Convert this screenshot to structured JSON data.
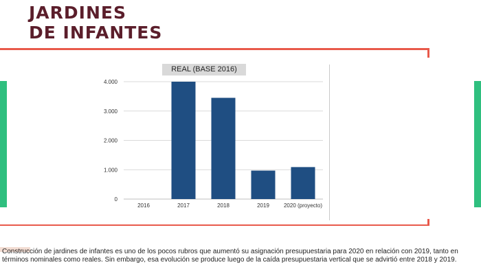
{
  "page": {
    "title_line1": "JARDINES",
    "title_line2": "DE INFANTES",
    "caption": "Construcción de jardines de infantes es uno de los pocos rubros que aumentó su asignación presupuestaria para 2020 en relación con 2019, tanto en términos nominales como reales. Sin embargo, esa evolución se produce luego de la caída presupuestaria vertical que se advirtió entre 2018 y 2019."
  },
  "colors": {
    "title": "#5b1e2b",
    "accent_green": "#2fbf7f",
    "frame_red": "#e8594a",
    "bar": "#1f4e82",
    "grid": "#d9d9d9",
    "legend_bg": "#d9d9d9"
  },
  "chart_data": {
    "type": "bar",
    "title": "",
    "xlabel": "",
    "ylabel": "",
    "series": [
      {
        "name": "REAL (BASE 2016)",
        "values": [
          0,
          4000,
          3450,
          970,
          1090
        ]
      }
    ],
    "categories": [
      "2016",
      "2017",
      "2018",
      "2019",
      "2020 (proyecto)"
    ],
    "ylim": [
      0,
      4000
    ],
    "yticks": [
      0,
      1000,
      2000,
      3000,
      4000
    ],
    "ytick_labels": [
      "0",
      "1.000",
      "2.000",
      "3.000",
      "4.000"
    ],
    "grid": true,
    "legend_position": "top-center"
  }
}
